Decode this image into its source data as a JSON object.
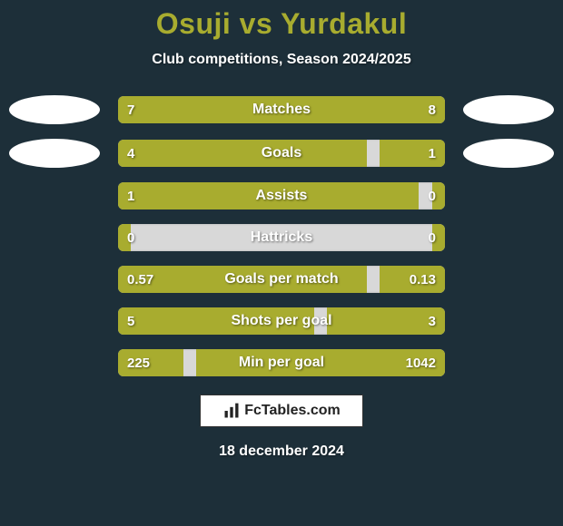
{
  "colors": {
    "background": "#1d2f39",
    "title": "#a8ac2f",
    "subtitle": "#ffffff",
    "bar_bg": "#d8d8d8",
    "bar_left_fill": "#a8ac2f",
    "bar_right_fill": "#a8ac2f",
    "bar_text": "#ffffff",
    "oval_left": "#ffffff",
    "oval_right": "#ffffff",
    "date_text": "#ffffff"
  },
  "title": {
    "player1": "Osuji",
    "vs": "vs",
    "player2": "Yurdakul"
  },
  "subtitle": "Club competitions, Season 2024/2025",
  "stats": [
    {
      "name": "Matches",
      "left_val": "7",
      "right_val": "8",
      "left_pct": 46,
      "right_pct": 54,
      "show_ovals": true
    },
    {
      "name": "Goals",
      "left_val": "4",
      "right_val": "1",
      "left_pct": 76,
      "right_pct": 20,
      "show_ovals": true
    },
    {
      "name": "Assists",
      "left_val": "1",
      "right_val": "0",
      "left_pct": 92,
      "right_pct": 4,
      "show_ovals": false
    },
    {
      "name": "Hattricks",
      "left_val": "0",
      "right_val": "0",
      "left_pct": 4,
      "right_pct": 4,
      "show_ovals": false
    },
    {
      "name": "Goals per match",
      "left_val": "0.57",
      "right_val": "0.13",
      "left_pct": 76,
      "right_pct": 20,
      "show_ovals": false
    },
    {
      "name": "Shots per goal",
      "left_val": "5",
      "right_val": "3",
      "left_pct": 60,
      "right_pct": 36,
      "show_ovals": false
    },
    {
      "name": "Min per goal",
      "left_val": "225",
      "right_val": "1042",
      "left_pct": 20,
      "right_pct": 76,
      "show_ovals": false
    }
  ],
  "logo_text": "FcTables.com",
  "date": "18 december 2024"
}
